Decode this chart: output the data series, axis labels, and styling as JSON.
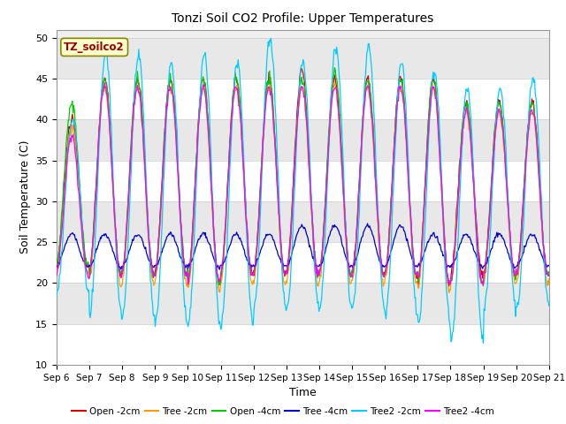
{
  "title": "Tonzi Soil CO2 Profile: Upper Temperatures",
  "xlabel": "Time",
  "ylabel": "Soil Temperature (C)",
  "ylim": [
    10,
    51
  ],
  "yticks": [
    10,
    15,
    20,
    25,
    30,
    35,
    40,
    45,
    50
  ],
  "plot_bg": "#f0f0f0",
  "fig_bg": "#ffffff",
  "legend_label": "TZ_soilco2",
  "series": [
    {
      "label": "Open -2cm",
      "color": "#dd0000"
    },
    {
      "label": "Tree -2cm",
      "color": "#ff9900"
    },
    {
      "label": "Open -4cm",
      "color": "#00cc00"
    },
    {
      "label": "Tree -4cm",
      "color": "#0000cc"
    },
    {
      "label": "Tree2 -2cm",
      "color": "#00ccff"
    },
    {
      "label": "Tree2 -4cm",
      "color": "#ff00ff"
    }
  ],
  "x_tick_labels": [
    "Sep 6",
    "Sep 7",
    "Sep 8",
    "Sep 9",
    "Sep 10",
    "Sep 11",
    "Sep 12",
    "Sep 13",
    "Sep 14",
    "Sep 15",
    "Sep 16",
    "Sep 17",
    "Sep 18",
    "Sep 19",
    "Sep 20",
    "Sep 21"
  ],
  "num_days": 15,
  "points_per_day": 48,
  "grid_colors": [
    "#ffffff",
    "#e0e0e0"
  ]
}
